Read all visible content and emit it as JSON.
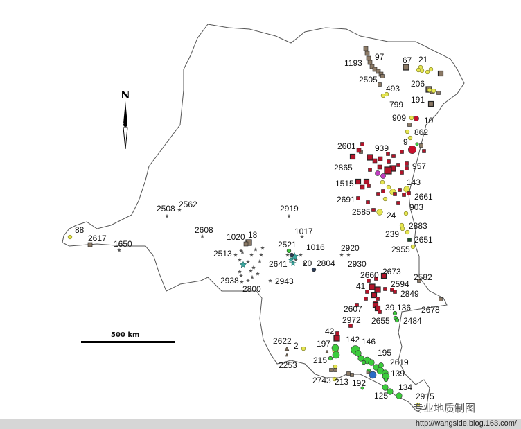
{
  "map": {
    "north_label": "N",
    "scale_label": "500 km",
    "site_labels": [
      "1193",
      "97",
      "67",
      "21",
      "2505",
      "493",
      "206",
      "799",
      "191",
      "909",
      "10",
      "862",
      "9",
      "2601",
      "939",
      "2865",
      "957",
      "1515",
      "143",
      "2691",
      "2661",
      "903",
      "2585",
      "24",
      "2883",
      "239",
      "2651",
      "2955",
      "2508",
      "2562",
      "2919",
      "2608",
      "1020",
      "18",
      "1017",
      "2521",
      "1016",
      "2513",
      "2641",
      "20",
      "2804",
      "2920",
      "2930",
      "2938",
      "2943",
      "2800",
      "88",
      "2617",
      "1650",
      "2660",
      "2673",
      "2582",
      "41",
      "2594",
      "2849",
      "2607",
      "39",
      "136",
      "2678",
      "2972",
      "2655",
      "2484",
      "42",
      "142",
      "146",
      "2622",
      "2",
      "197",
      "195",
      "2253",
      "215",
      "2619",
      "139",
      "2743",
      "213",
      "192",
      "134",
      "125",
      "2915"
    ],
    "symbol_colors": {
      "brown_square": "#8c7a66",
      "red_square": "#b3142a",
      "red_circle": "#c8102e",
      "yellow_circle": "#e6e650",
      "green_circle": "#3ccc3c",
      "blue_circle": "#2b6cc4",
      "magenta_circle": "#c03cc0",
      "gray_star": "#555555",
      "teal_star": "#3aa8a0",
      "triangle": "#7a6a58",
      "border": "#555555"
    }
  },
  "watermark": "专业地质制图",
  "footer_url": "http://wangside.blog.163.com/"
}
